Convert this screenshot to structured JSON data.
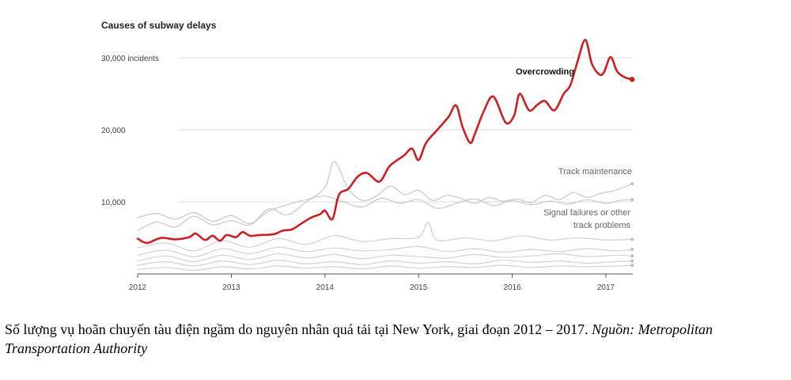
{
  "chart_data": {
    "type": "line",
    "title": "Causes of subway delays",
    "yunit_label": "30,000 incidents",
    "ytick_labels": [
      "10,000",
      "20,000"
    ],
    "yticks": [
      10000,
      20000,
      30000
    ],
    "ylim": [
      0,
      34000
    ],
    "xlim": [
      2012,
      2017.3
    ],
    "xticks": [
      "2012",
      "2013",
      "2014",
      "2015",
      "2016",
      "2017"
    ],
    "grid": true,
    "series": [
      {
        "name": "Overcrowding",
        "color": "#cc1f1f",
        "emphasis": true,
        "x": [
          2012.0,
          2012.1,
          2012.25,
          2012.4,
          2012.55,
          2012.62,
          2012.72,
          2012.8,
          2012.88,
          2012.95,
          2013.05,
          2013.12,
          2013.2,
          2013.3,
          2013.45,
          2013.55,
          2013.65,
          2013.75,
          2013.85,
          2013.95,
          2014.0,
          2014.08,
          2014.15,
          2014.25,
          2014.35,
          2014.45,
          2014.58,
          2014.68,
          2014.75,
          2014.85,
          2014.93,
          2015.0,
          2015.08,
          2015.2,
          2015.32,
          2015.4,
          2015.47,
          2015.55,
          2015.6,
          2015.7,
          2015.8,
          2015.93,
          2016.02,
          2016.08,
          2016.18,
          2016.27,
          2016.35,
          2016.45,
          2016.55,
          2016.62,
          2016.7,
          2016.78,
          2016.85,
          2016.93,
          2016.98,
          2017.05,
          2017.12,
          2017.2,
          2017.28
        ],
        "values": [
          4900,
          4300,
          5000,
          4800,
          5100,
          5600,
          4700,
          5300,
          4600,
          5400,
          5100,
          5800,
          5300,
          5400,
          5500,
          6000,
          6200,
          7000,
          7800,
          8300,
          8800,
          7600,
          11000,
          11800,
          13500,
          14000,
          12800,
          14800,
          15600,
          16500,
          17400,
          15800,
          18200,
          20000,
          21800,
          23400,
          20400,
          18200,
          19400,
          22700,
          24600,
          21000,
          22000,
          25000,
          22700,
          23500,
          24000,
          22700,
          25000,
          26200,
          29600,
          32500,
          29200,
          27700,
          28000,
          30100,
          28100,
          27300,
          27000
        ]
      },
      {
        "name": "Track maintenance",
        "color": "#c8c8c8",
        "x": [
          2012.0,
          2012.2,
          2012.4,
          2012.6,
          2012.8,
          2013.0,
          2013.2,
          2013.4,
          2013.6,
          2013.8,
          2014.0,
          2014.1,
          2014.25,
          2014.4,
          2014.55,
          2014.7,
          2014.85,
          2015.0,
          2015.15,
          2015.3,
          2015.45,
          2015.6,
          2015.75,
          2015.9,
          2016.05,
          2016.2,
          2016.35,
          2016.5,
          2016.65,
          2016.8,
          2016.95,
          2017.1,
          2017.28
        ],
        "values": [
          6000,
          7200,
          6500,
          8000,
          6800,
          7400,
          6800,
          9000,
          8200,
          10000,
          12000,
          15600,
          11800,
          10200,
          10800,
          12200,
          11000,
          11600,
          10200,
          10900,
          10500,
          9800,
          10600,
          10100,
          10400,
          9900,
          10900,
          10300,
          11300,
          10600,
          11200,
          11600,
          12500
        ]
      },
      {
        "name": "Signal failures or other track problems",
        "color": "#c8c8c8",
        "x": [
          2012.0,
          2012.2,
          2012.4,
          2012.6,
          2012.8,
          2013.0,
          2013.2,
          2013.4,
          2013.6,
          2013.8,
          2014.0,
          2014.2,
          2014.4,
          2014.6,
          2014.8,
          2015.0,
          2015.2,
          2015.4,
          2015.6,
          2015.8,
          2016.0,
          2016.2,
          2016.4,
          2016.6,
          2016.8,
          2017.0,
          2017.15,
          2017.28
        ],
        "values": [
          7800,
          8400,
          7600,
          8500,
          7300,
          8100,
          7000,
          8700,
          9600,
          10300,
          10800,
          10000,
          9300,
          10500,
          9800,
          10300,
          9100,
          9800,
          10400,
          9500,
          10200,
          9600,
          10100,
          9700,
          10300,
          9800,
          10200,
          10300
        ]
      },
      {
        "name": "",
        "color": "#d2d2d2",
        "x": [
          2012.0,
          2012.3,
          2012.6,
          2012.9,
          2013.2,
          2013.5,
          2013.8,
          2014.1,
          2014.4,
          2014.7,
          2015.0,
          2015.1,
          2015.2,
          2015.5,
          2015.8,
          2016.1,
          2016.4,
          2016.7,
          2017.0,
          2017.28
        ],
        "values": [
          3600,
          4300,
          3200,
          4600,
          3700,
          4900,
          4100,
          5300,
          4500,
          4900,
          5100,
          7200,
          4700,
          5000,
          4600,
          5300,
          4700,
          5000,
          4700,
          4800
        ]
      },
      {
        "name": "",
        "color": "#d2d2d2",
        "x": [
          2012.0,
          2012.3,
          2012.6,
          2012.9,
          2013.2,
          2013.5,
          2013.8,
          2014.1,
          2014.4,
          2014.7,
          2015.0,
          2015.3,
          2015.6,
          2015.9,
          2016.2,
          2016.5,
          2016.8,
          2017.1,
          2017.28
        ],
        "values": [
          2600,
          3300,
          2400,
          3500,
          2800,
          3700,
          3100,
          3600,
          3200,
          3400,
          3800,
          3100,
          3500,
          3000,
          3400,
          3100,
          3500,
          3200,
          3400
        ]
      },
      {
        "name": "",
        "color": "#d2d2d2",
        "x": [
          2012.0,
          2012.3,
          2012.6,
          2012.9,
          2013.2,
          2013.5,
          2013.8,
          2014.1,
          2014.4,
          2014.7,
          2015.0,
          2015.3,
          2015.6,
          2015.9,
          2016.2,
          2016.5,
          2016.8,
          2017.1,
          2017.28
        ],
        "values": [
          1800,
          2500,
          1700,
          2600,
          2000,
          2800,
          2200,
          2700,
          2100,
          2600,
          2400,
          2200,
          2700,
          2300,
          2500,
          2800,
          2400,
          2600,
          2500
        ]
      },
      {
        "name": "",
        "color": "#d2d2d2",
        "x": [
          2012.0,
          2012.3,
          2012.6,
          2012.9,
          2013.2,
          2013.5,
          2013.8,
          2014.1,
          2014.4,
          2014.7,
          2015.0,
          2015.3,
          2015.6,
          2015.9,
          2016.2,
          2016.5,
          2016.8,
          2017.1,
          2017.28
        ],
        "values": [
          1200,
          1700,
          1100,
          1800,
          1300,
          1900,
          1400,
          1700,
          1300,
          1800,
          1500,
          1700,
          1400,
          1900,
          1600,
          1800,
          1500,
          1700,
          1800
        ]
      },
      {
        "name": "",
        "color": "#d2d2d2",
        "x": [
          2012.0,
          2012.3,
          2012.6,
          2012.9,
          2013.2,
          2013.5,
          2013.8,
          2014.1,
          2014.4,
          2014.7,
          2015.0,
          2015.3,
          2015.6,
          2015.9,
          2016.2,
          2016.5,
          2016.8,
          2017.1,
          2017.28
        ],
        "values": [
          600,
          900,
          500,
          1000,
          700,
          1100,
          800,
          1000,
          700,
          1100,
          800,
          1000,
          900,
          1200,
          900,
          1100,
          1000,
          1100,
          1200
        ]
      }
    ]
  },
  "caption": {
    "text": "Số lượng vụ hoãn chuyến tàu điện ngầm do nguyên nhân quá tải tại New York, giai đoạn 2012 – 2017. ",
    "source": "Nguồn: Metropolitan Transportation Authority"
  }
}
